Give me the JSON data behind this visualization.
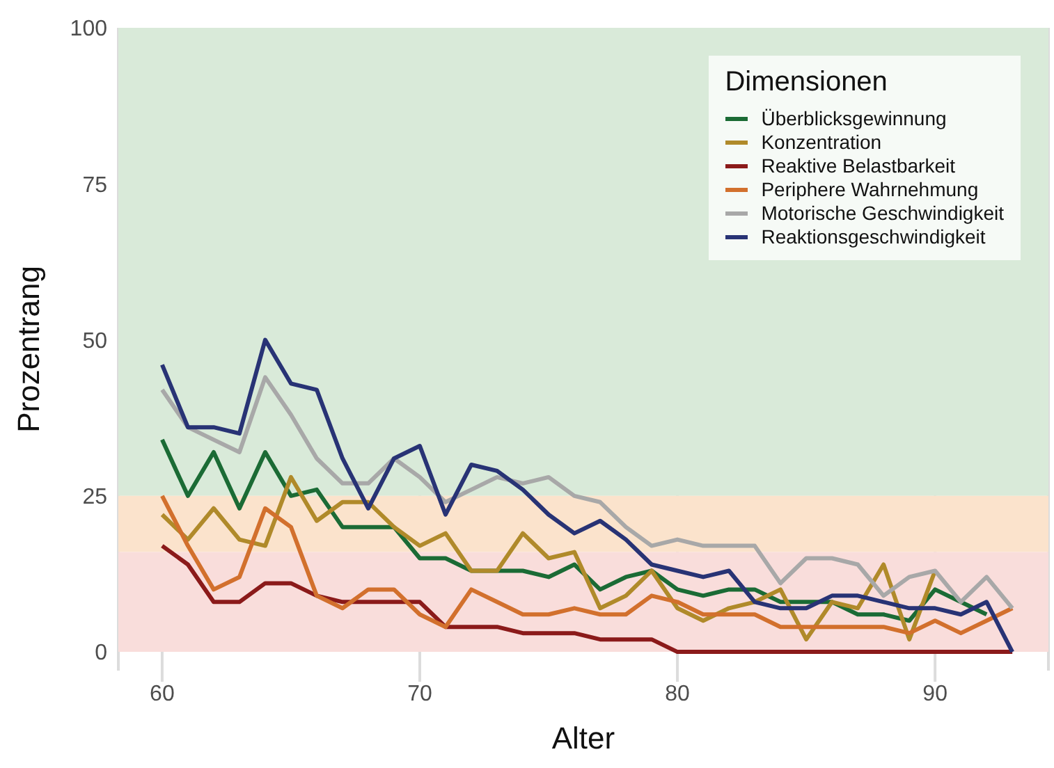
{
  "chart_data": {
    "type": "line",
    "xlabel": "Alter",
    "ylabel": "Prozentrang",
    "legend_title": "Dimensionen",
    "legend": "top right",
    "grid": "x",
    "marker": "none",
    "line_style": "solid",
    "x": [
      60,
      61,
      62,
      63,
      64,
      65,
      66,
      67,
      68,
      69,
      70,
      71,
      72,
      73,
      74,
      75,
      76,
      77,
      78,
      79,
      80,
      81,
      82,
      83,
      84,
      85,
      86,
      87,
      88,
      89,
      90,
      91,
      92,
      93
    ],
    "xlim": [
      58.3,
      94.4
    ],
    "xticks": [
      60,
      70,
      80,
      90
    ],
    "ylim": [
      -3,
      100
    ],
    "yticks": [
      0,
      25,
      50,
      75,
      100
    ],
    "bands": [
      {
        "axis": "y",
        "from": 25,
        "to": 100,
        "color": "#d9ead9"
      },
      {
        "axis": "y",
        "from": 16,
        "to": 25,
        "color": "#fbe3cc"
      },
      {
        "axis": "y",
        "from": 0,
        "to": 16,
        "color": "#f9dddb"
      }
    ],
    "series": [
      {
        "name": "Überblicksgewinnung",
        "color": "#1b6b35",
        "values": [
          34,
          25,
          32,
          23,
          32,
          25,
          26,
          20,
          20,
          20,
          15,
          15,
          13,
          13,
          13,
          12,
          14,
          10,
          12,
          13,
          10,
          9,
          10,
          10,
          8,
          8,
          8,
          6,
          6,
          5,
          10,
          8,
          6,
          null
        ]
      },
      {
        "name": "Konzentration",
        "color": "#b08a2a",
        "values": [
          22,
          18,
          23,
          18,
          17,
          28,
          21,
          24,
          24,
          20,
          17,
          19,
          13,
          13,
          19,
          15,
          16,
          7,
          9,
          13,
          7,
          5,
          7,
          8,
          10,
          2,
          8,
          7,
          14,
          2,
          13,
          null,
          null,
          null
        ]
      },
      {
        "name": "Reaktive Belastbarkeit",
        "color": "#8b1a1a",
        "values": [
          17,
          14,
          8,
          8,
          11,
          11,
          9,
          8,
          8,
          8,
          8,
          4,
          4,
          4,
          3,
          3,
          3,
          2,
          2,
          2,
          0,
          0,
          0,
          0,
          0,
          0,
          0,
          0,
          0,
          0,
          0,
          0,
          0,
          0
        ]
      },
      {
        "name": "Periphere Wahrnehmung",
        "color": "#d2702d",
        "values": [
          25,
          17,
          10,
          12,
          23,
          20,
          9,
          7,
          10,
          10,
          6,
          4,
          10,
          8,
          6,
          6,
          7,
          6,
          6,
          9,
          8,
          6,
          6,
          6,
          4,
          4,
          4,
          4,
          4,
          3,
          5,
          3,
          5,
          7
        ]
      },
      {
        "name": "Motorische Geschwindigkeit",
        "color": "#a8a8a8",
        "values": [
          42,
          36,
          34,
          32,
          44,
          38,
          31,
          27,
          27,
          31,
          28,
          24,
          26,
          28,
          27,
          28,
          25,
          24,
          20,
          17,
          18,
          17,
          17,
          17,
          11,
          15,
          15,
          14,
          9,
          12,
          13,
          8,
          12,
          7
        ]
      },
      {
        "name": "Reaktionsgeschwindigkeit",
        "color": "#283375",
        "values": [
          46,
          36,
          36,
          35,
          50,
          43,
          42,
          31,
          23,
          31,
          33,
          22,
          30,
          29,
          26,
          22,
          19,
          21,
          18,
          14,
          13,
          12,
          13,
          8,
          7,
          7,
          9,
          9,
          8,
          7,
          7,
          6,
          8,
          0
        ]
      }
    ]
  }
}
